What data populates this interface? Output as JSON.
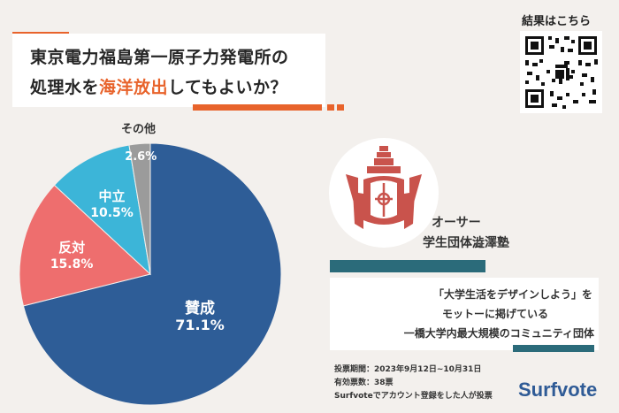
{
  "title": {
    "line1": "東京電力福島第一原子力発電所の",
    "line2_pre": "処理水を",
    "line2_highlight": "海洋放出",
    "line2_post": "してもよいか？"
  },
  "qr": {
    "label": "結果はこちら"
  },
  "chart_data": {
    "type": "pie",
    "slices": [
      {
        "label": "賛成",
        "value": 71.1,
        "value_label": "71.1%",
        "color": "#2e5d97"
      },
      {
        "label": "反対",
        "value": 15.8,
        "value_label": "15.8%",
        "color": "#ee6e6e"
      },
      {
        "label": "中立",
        "value": 10.5,
        "value_label": "10.5%",
        "color": "#3cb5d8"
      },
      {
        "label": "その他",
        "value": 2.6,
        "value_label": "2.6%",
        "color": "#9b9b9b"
      }
    ]
  },
  "owner": {
    "line1": "オーサー",
    "line2": "学生団体澁澤塾"
  },
  "description": {
    "line1": "「大学生活をデザインしよう」を",
    "line2": "モットーに掲げている",
    "line3": "一橋大学内最大規模のコミュニティ団体"
  },
  "info": {
    "period": "投票期間：2023年9月12日~10月31日",
    "count": "有効票数：38票",
    "note": "Surfvoteでアカウント登録をした人が投票"
  },
  "brand": "Surfvote"
}
